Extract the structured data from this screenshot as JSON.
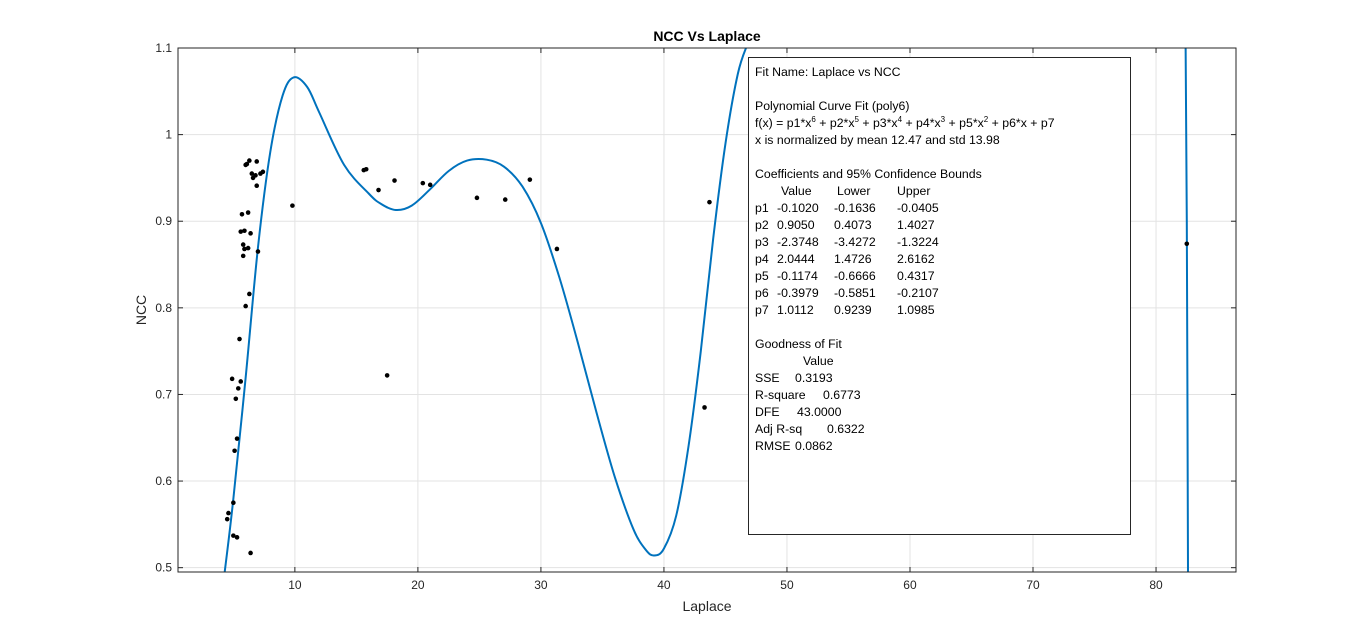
{
  "chart_data": {
    "type": "scatter",
    "title": "NCC Vs Laplace",
    "xlabel": "Laplace",
    "ylabel": "NCC",
    "xlim": [
      0.5,
      86.5
    ],
    "ylim": [
      0.495,
      1.1
    ],
    "xticks": [
      "10",
      "20",
      "30",
      "40",
      "50",
      "60",
      "70",
      "80"
    ],
    "xtick_values": [
      10,
      20,
      30,
      40,
      50,
      60,
      70,
      80
    ],
    "yticks": [
      "0.5",
      "0.6",
      "0.7",
      "0.8",
      "0.9",
      "1",
      "1.1"
    ],
    "ytick_values": [
      0.5,
      0.6,
      0.7,
      0.8,
      0.9,
      1.0,
      1.1
    ],
    "grid": true,
    "series": [
      {
        "kind": "points",
        "color": "#000000",
        "points": [
          [
            4.5,
            0.556
          ],
          [
            4.6,
            0.563
          ],
          [
            4.9,
            0.718
          ],
          [
            5.0,
            0.575
          ],
          [
            5.0,
            0.537
          ],
          [
            5.1,
            0.635
          ],
          [
            5.2,
            0.695
          ],
          [
            5.3,
            0.649
          ],
          [
            5.3,
            0.535
          ],
          [
            5.4,
            0.707
          ],
          [
            5.5,
            0.764
          ],
          [
            5.6,
            0.888
          ],
          [
            5.6,
            0.715
          ],
          [
            5.7,
            0.908
          ],
          [
            5.8,
            0.873
          ],
          [
            5.8,
            0.86
          ],
          [
            5.9,
            0.868
          ],
          [
            5.9,
            0.889
          ],
          [
            6.0,
            0.802
          ],
          [
            6.0,
            0.965
          ],
          [
            6.1,
            0.966
          ],
          [
            6.2,
            0.91
          ],
          [
            6.2,
            0.869
          ],
          [
            6.3,
            0.97
          ],
          [
            6.3,
            0.816
          ],
          [
            6.4,
            0.886
          ],
          [
            6.4,
            0.517
          ],
          [
            6.5,
            0.955
          ],
          [
            6.6,
            0.95
          ],
          [
            6.8,
            0.953
          ],
          [
            6.9,
            0.941
          ],
          [
            6.9,
            0.969
          ],
          [
            7.0,
            0.865
          ],
          [
            7.2,
            0.955
          ],
          [
            7.4,
            0.957
          ],
          [
            9.8,
            0.918
          ],
          [
            15.6,
            0.959
          ],
          [
            15.8,
            0.96
          ],
          [
            16.8,
            0.936
          ],
          [
            17.5,
            0.722
          ],
          [
            18.1,
            0.947
          ],
          [
            20.4,
            0.944
          ],
          [
            21.0,
            0.942
          ],
          [
            24.8,
            0.927
          ],
          [
            27.1,
            0.925
          ],
          [
            29.1,
            0.948
          ],
          [
            31.3,
            0.868
          ],
          [
            43.3,
            0.685
          ],
          [
            43.7,
            0.922
          ],
          [
            82.5,
            0.874
          ]
        ]
      },
      {
        "kind": "fitted-curve",
        "color": "#0072BD",
        "x": [
          4.3,
          5.0,
          6.0,
          7.0,
          8.0,
          9.0,
          9.9,
          11.0,
          12.0,
          14.0,
          16.0,
          17.0,
          18.2,
          19.5,
          21.0,
          22.5,
          24.0,
          25.6,
          27.0,
          28.5,
          30.0,
          31.5,
          33.0,
          34.5,
          36.0,
          37.5,
          38.5,
          39.2,
          40.0,
          41.0,
          42.0,
          43.0,
          44.0,
          45.0,
          46.0,
          46.8,
          82.4,
          82.5,
          82.6
        ],
        "y": [
          0.495,
          0.58,
          0.72,
          0.87,
          0.98,
          1.045,
          1.066,
          1.055,
          1.025,
          0.965,
          0.932,
          0.92,
          0.913,
          0.918,
          0.937,
          0.958,
          0.97,
          0.971,
          0.963,
          0.94,
          0.898,
          0.835,
          0.76,
          0.68,
          0.605,
          0.545,
          0.521,
          0.514,
          0.522,
          0.56,
          0.64,
          0.75,
          0.88,
          0.99,
          1.07,
          1.105,
          1.105,
          0.9,
          0.495
        ]
      }
    ]
  },
  "stats": {
    "fit_name": "Fit Name: Laplace vs NCC",
    "method": "Polynomial Curve Fit (poly6)",
    "formula": "f(x) = p1*x^6 + p2*x^5 + p3*x^4 + p4*x^3 + p5*x^2 + p6*x + p7",
    "normalize": "x is normalized by mean 12.47 and std 13.98",
    "coef_title": "Coefficients and 95% Confidence Bounds",
    "coef_headers": [
      "Value",
      "Lower",
      "Upper"
    ],
    "coefficients": [
      {
        "name": "p1",
        "value": "-0.1020",
        "lower": "-0.1636",
        "upper": "-0.0405"
      },
      {
        "name": "p2",
        "value": "0.9050",
        "lower": "0.4073",
        "upper": "1.4027"
      },
      {
        "name": "p3",
        "value": "-2.3748",
        "lower": "-3.4272",
        "upper": "-1.3224"
      },
      {
        "name": "p4",
        "value": "2.0444",
        "lower": "1.4726",
        "upper": "2.6162"
      },
      {
        "name": "p5",
        "value": "-0.1174",
        "lower": "-0.6666",
        "upper": "0.4317"
      },
      {
        "name": "p6",
        "value": "-0.3979",
        "lower": "-0.5851",
        "upper": "-0.2107"
      },
      {
        "name": "p7",
        "value": "1.0112",
        "lower": "0.9239",
        "upper": "1.0985"
      }
    ],
    "gof_title": "Goodness of Fit",
    "gof_header": "Value",
    "gof": [
      {
        "name": "SSE",
        "value": "0.3193"
      },
      {
        "name": "R-square",
        "value": "0.6773"
      },
      {
        "name": "DFE",
        "value": "43.0000"
      },
      {
        "name": "Adj R-sq",
        "value": "0.6322"
      },
      {
        "name": "RMSE",
        "value": "0.0862"
      }
    ]
  }
}
